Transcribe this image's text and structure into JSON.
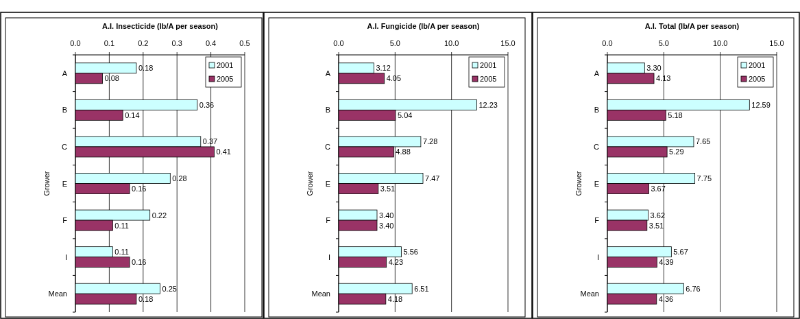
{
  "chart_data": [
    {
      "type": "bar",
      "orientation": "horizontal",
      "title": "A.I. Insecticide (lb/A per season)",
      "ylabel": "Grower",
      "categories": [
        "A",
        "B",
        "C",
        "E",
        "F",
        "I",
        "Mean"
      ],
      "xlim": [
        0,
        0.5
      ],
      "xticks": [
        {
          "value": 0,
          "label": "0.0"
        },
        0.1,
        0.2,
        0.3,
        0.4,
        0.5
      ],
      "grid": "x",
      "legend": "top right",
      "series": [
        {
          "name": "2001",
          "color": "#ccffff",
          "values": [
            0.18,
            0.36,
            0.37,
            0.28,
            0.22,
            0.11,
            0.25
          ],
          "value_labels": [
            "0.18",
            "0.36",
            "0.37",
            "0.28",
            "0.22",
            "0.11",
            "0.25"
          ]
        },
        {
          "name": "2005",
          "color": "#993366",
          "values": [
            0.08,
            0.14,
            0.41,
            0.16,
            0.11,
            0.16,
            0.18
          ],
          "value_labels": [
            "0.08",
            "0.14",
            "0.41",
            "0.16",
            "0.11",
            "0.16",
            "0.18"
          ]
        }
      ]
    },
    {
      "type": "bar",
      "orientation": "horizontal",
      "title": "A.I. Fungicide (lb/A per season)",
      "ylabel": "Grower",
      "categories": [
        "A",
        "B",
        "C",
        "E",
        "F",
        "I",
        "Mean"
      ],
      "xlim": [
        0,
        15
      ],
      "xticks": [
        {
          "value": 0,
          "label": "0.0"
        },
        {
          "value": 5,
          "label": "5.0"
        },
        {
          "value": 10,
          "label": "10.0"
        },
        {
          "value": 15,
          "label": "15.0"
        }
      ],
      "grid": "x",
      "legend": "top right",
      "series": [
        {
          "name": "2001",
          "color": "#ccffff",
          "values": [
            3.12,
            12.23,
            7.28,
            7.47,
            3.4,
            5.56,
            6.51
          ],
          "value_labels": [
            "3.12",
            "12.23",
            "7.28",
            "7.47",
            "3.40",
            "5.56",
            "6.51"
          ]
        },
        {
          "name": "2005",
          "color": "#993366",
          "values": [
            4.05,
            5.04,
            4.88,
            3.51,
            3.4,
            4.23,
            4.18
          ],
          "value_labels": [
            "4.05",
            "5.04",
            "4.88",
            "3.51",
            "3.40",
            "4.23",
            "4.18"
          ]
        }
      ]
    },
    {
      "type": "bar",
      "orientation": "horizontal",
      "title": "A.I. Total (lb/A per season)",
      "ylabel": "Grower",
      "categories": [
        "A",
        "B",
        "C",
        "E",
        "F",
        "I",
        "Mean"
      ],
      "xlim": [
        0,
        15
      ],
      "xticks": [
        {
          "value": 0,
          "label": "0.0"
        },
        {
          "value": 5,
          "label": "5.0"
        },
        {
          "value": 10,
          "label": "10.0"
        },
        {
          "value": 15,
          "label": "15.0"
        }
      ],
      "grid": "x",
      "legend": "top right",
      "series": [
        {
          "name": "2001",
          "color": "#ccffff",
          "values": [
            3.3,
            12.59,
            7.65,
            7.75,
            3.62,
            5.67,
            6.76
          ],
          "value_labels": [
            "3.30",
            "12.59",
            "7.65",
            "7.75",
            "3.62",
            "5.67",
            "6.76"
          ]
        },
        {
          "name": "2005",
          "color": "#993366",
          "values": [
            4.13,
            5.18,
            5.29,
            3.67,
            3.51,
            4.39,
            4.36
          ],
          "value_labels": [
            "4.13",
            "5.18",
            "5.29",
            "3.67",
            "3.51",
            "4.39",
            "4.36"
          ]
        }
      ]
    }
  ]
}
